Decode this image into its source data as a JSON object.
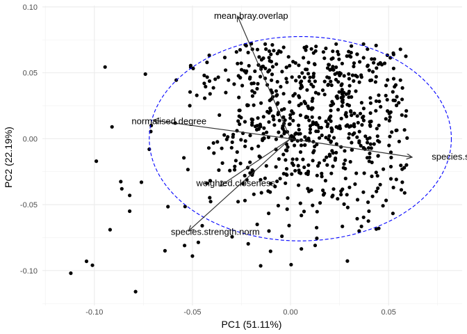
{
  "chart_data": {
    "type": "scatter",
    "title": "",
    "xlabel": "PC1 (51.11%)",
    "ylabel": "PC2 (22.19%)",
    "xlim": [
      -0.1265,
      0.0875
    ],
    "ylim": [
      -0.1265,
      0.101
    ],
    "x_ticks": [
      -0.1,
      -0.05,
      0.0,
      0.05
    ],
    "x_tick_labels": [
      "-0.10",
      "-0.05",
      "0.00",
      "0.05"
    ],
    "y_ticks": [
      -0.1,
      -0.05,
      0.0,
      0.05,
      0.1
    ],
    "y_tick_labels": [
      "-0.10",
      "-0.05",
      "0.00",
      "0.05",
      "0.10"
    ],
    "grid": true,
    "theme": "minimal",
    "point_color": "#000000",
    "points": {
      "sampled": true,
      "count": 700,
      "seed": 7,
      "center": [
        0.007,
        0.015
      ],
      "spread": [
        0.03,
        0.038
      ]
    },
    "sample_points": [
      [
        -0.112,
        -0.102
      ],
      [
        -0.104,
        -0.093
      ],
      [
        -0.101,
        -0.096
      ],
      [
        -0.079,
        -0.116
      ],
      [
        -0.099,
        -0.017
      ],
      [
        -0.091,
        0.009
      ],
      [
        -0.092,
        -0.069
      ],
      [
        -0.086,
        -0.038
      ],
      [
        -0.082,
        -0.043
      ],
      [
        -0.082,
        -0.055
      ],
      [
        -0.076,
        -0.033
      ],
      [
        -0.074,
        0.049
      ],
      [
        -0.072,
        -0.008
      ],
      [
        -0.071,
        0.01
      ],
      [
        -0.064,
        -0.085
      ],
      [
        -0.054,
        -0.081
      ],
      [
        -0.05,
        -0.089
      ],
      [
        -0.045,
        -0.066
      ],
      [
        -0.041,
        0.034
      ],
      [
        -0.044,
        0.042
      ],
      [
        -0.02,
        0.072
      ],
      [
        -0.016,
        0.062
      ],
      [
        -0.01,
        0.064
      ],
      [
        0.025,
        0.05
      ],
      [
        0.045,
        0.033
      ],
      [
        0.058,
        -0.022
      ],
      [
        0.057,
        -0.033
      ],
      [
        0.045,
        -0.068
      ],
      [
        0.04,
        -0.055
      ],
      [
        0.035,
        -0.07
      ],
      [
        -0.011,
        -0.07
      ],
      [
        -0.017,
        -0.065
      ],
      [
        -0.033,
        0.035
      ],
      [
        -0.027,
        0.057
      ],
      [
        -0.044,
        0.048
      ],
      [
        0.013,
        0.07
      ]
    ],
    "ellipse": {
      "color": "#0000ff",
      "line_style": "dashed",
      "center": [
        0.005,
        0.0
      ],
      "radii": [
        0.077,
        0.0775
      ]
    },
    "vectors": [
      {
        "label": "mean.bray.overlap",
        "end": [
          -0.027,
          0.093
        ],
        "label_at": [
          -0.039,
          0.091
        ]
      },
      {
        "label": "normalised.degree",
        "end": [
          -0.07,
          0.014
        ],
        "label_at": [
          -0.081,
          0.011
        ]
      },
      {
        "label": "species.specificity.index",
        "end": [
          0.062,
          -0.014
        ],
        "label_at": [
          0.072,
          -0.016
        ]
      },
      {
        "label": "weighted.closeness",
        "end": [
          -0.036,
          -0.036
        ],
        "label_at": [
          -0.048,
          -0.036
        ]
      },
      {
        "label": "species.strength.norm",
        "end": [
          -0.052,
          -0.07
        ],
        "label_at": [
          -0.061,
          -0.073
        ]
      }
    ],
    "vector_color": "#333333"
  }
}
